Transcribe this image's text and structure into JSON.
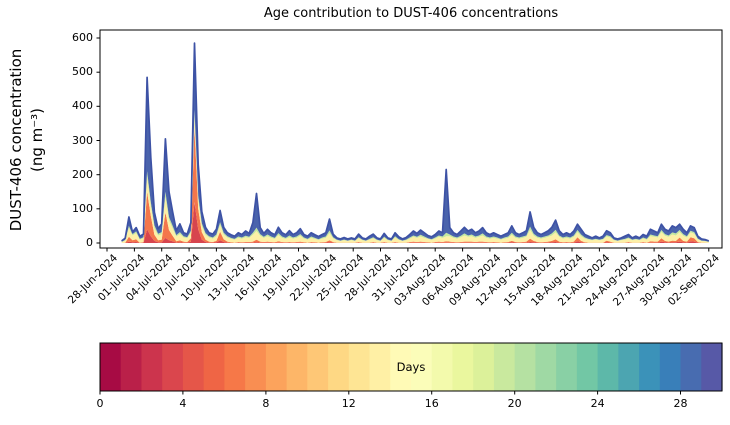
{
  "title": "Age contribution to DUST-406 concentrations",
  "y_axis": {
    "label_line1": "DUST-406 concentration",
    "label_line2": "(ng m⁻³)",
    "ticks": [
      0,
      100,
      200,
      300,
      400,
      500,
      600
    ],
    "limits": [
      -15,
      623
    ]
  },
  "x_axis": {
    "tick_labels": [
      "28-Jun-2024",
      "01-Jul-2024",
      "04-Jul-2024",
      "07-Jul-2024",
      "10-Jul-2024",
      "13-Jul-2024",
      "16-Jul-2024",
      "19-Jul-2024",
      "22-Jul-2024",
      "25-Jul-2024",
      "28-Jul-2024",
      "31-Jul-2024",
      "03-Aug-2024",
      "06-Aug-2024",
      "09-Aug-2024",
      "12-Aug-2024",
      "15-Aug-2024",
      "18-Aug-2024",
      "21-Aug-2024",
      "24-Aug-2024",
      "27-Aug-2024",
      "30-Aug-2024",
      "02-Sep-2024"
    ],
    "tick_day_step": 3
  },
  "colorbar": {
    "label": "Days",
    "ticks": [
      0,
      4,
      8,
      12,
      16,
      20,
      24,
      28
    ],
    "range": [
      0,
      30
    ],
    "n_segments": 30,
    "spectral_anchors": [
      "#9e0142",
      "#d53e4f",
      "#f46d43",
      "#fdae61",
      "#fee08b",
      "#ffffbf",
      "#e6f598",
      "#abdda4",
      "#66c2a5",
      "#3288bd",
      "#5e4fa2"
    ]
  },
  "colors": {
    "spine": "#000000",
    "text": "#000000",
    "background": "#ffffff",
    "envelope_stroke": "#3d52a5"
  },
  "chart_data": {
    "type": "area",
    "stacked": true,
    "title": "Age contribution to DUST-406 concentrations",
    "ylabel": "DUST-406 concentration (ng m⁻³)",
    "ylim": [
      -15,
      623
    ],
    "x_day0_date": "28-Jun-2024",
    "x_start_day": 1.6,
    "x_step_day": 0.4,
    "bands": [
      {
        "age_days": "0-7",
        "color": "#d7454e"
      },
      {
        "age_days": "7-12",
        "color": "#f4764b"
      },
      {
        "age_days": "12-17",
        "color": "#fdf0a6"
      },
      {
        "age_days": "17-22",
        "color": "#c3e79e"
      },
      {
        "age_days": "22-30",
        "color": "#4a63ac"
      }
    ],
    "points": [
      [
        0,
        0,
        3,
        1,
        2
      ],
      [
        0,
        1,
        6,
        2,
        5
      ],
      [
        4,
        14,
        26,
        6,
        26
      ],
      [
        2,
        6,
        14,
        4,
        6
      ],
      [
        3,
        8,
        18,
        5,
        11
      ],
      [
        0,
        1,
        9,
        2,
        8
      ],
      [
        1,
        2,
        11,
        3,
        9
      ],
      [
        40,
        110,
        45,
        15,
        275
      ],
      [
        20,
        60,
        30,
        10,
        130
      ],
      [
        6,
        18,
        20,
        8,
        38
      ],
      [
        2,
        6,
        14,
        5,
        15
      ],
      [
        2,
        8,
        16,
        6,
        24
      ],
      [
        15,
        75,
        45,
        15,
        155
      ],
      [
        8,
        30,
        28,
        10,
        74
      ],
      [
        5,
        16,
        22,
        8,
        41
      ],
      [
        1,
        4,
        14,
        4,
        13
      ],
      [
        2,
        6,
        18,
        6,
        24
      ],
      [
        1,
        3,
        12,
        4,
        10
      ],
      [
        1,
        2,
        11,
        3,
        9
      ],
      [
        4,
        10,
        16,
        6,
        24
      ],
      [
        120,
        220,
        35,
        15,
        195
      ],
      [
        40,
        60,
        28,
        10,
        92
      ],
      [
        10,
        22,
        18,
        8,
        34
      ],
      [
        3,
        7,
        14,
        5,
        17
      ],
      [
        1,
        3,
        12,
        4,
        10
      ],
      [
        1,
        2,
        10,
        3,
        10
      ],
      [
        2,
        4,
        14,
        5,
        15
      ],
      [
        8,
        25,
        20,
        8,
        34
      ],
      [
        3,
        8,
        14,
        5,
        16
      ],
      [
        1,
        3,
        12,
        4,
        10
      ],
      [
        0,
        2,
        10,
        3,
        9
      ],
      [
        0,
        1,
        9,
        2,
        8
      ],
      [
        1,
        2,
        12,
        4,
        11
      ],
      [
        0,
        2,
        11,
        3,
        9
      ],
      [
        1,
        2,
        14,
        4,
        14
      ],
      [
        1,
        2,
        12,
        3,
        10
      ],
      [
        1,
        3,
        20,
        6,
        30
      ],
      [
        2,
        8,
        25,
        10,
        100
      ],
      [
        1,
        3,
        17,
        5,
        19
      ],
      [
        1,
        2,
        12,
        3,
        10
      ],
      [
        1,
        3,
        16,
        5,
        15
      ],
      [
        1,
        2,
        12,
        4,
        11
      ],
      [
        0,
        2,
        10,
        3,
        9
      ],
      [
        1,
        4,
        18,
        6,
        17
      ],
      [
        1,
        2,
        12,
        4,
        11
      ],
      [
        0,
        2,
        10,
        3,
        9
      ],
      [
        1,
        2,
        14,
        5,
        14
      ],
      [
        0,
        2,
        11,
        3,
        9
      ],
      [
        1,
        2,
        12,
        4,
        11
      ],
      [
        1,
        3,
        17,
        5,
        16
      ],
      [
        0,
        2,
        11,
        3,
        9
      ],
      [
        0,
        1,
        9,
        2,
        8
      ],
      [
        1,
        2,
        12,
        4,
        11
      ],
      [
        0,
        2,
        10,
        3,
        9
      ],
      [
        0,
        1,
        8,
        2,
        8
      ],
      [
        0,
        2,
        11,
        3,
        9
      ],
      [
        1,
        2,
        12,
        4,
        11
      ],
      [
        2,
        6,
        21,
        8,
        33
      ],
      [
        1,
        2,
        11,
        3,
        9
      ],
      [
        0,
        1,
        7,
        2,
        5
      ],
      [
        0,
        1,
        5,
        1,
        5
      ],
      [
        0,
        1,
        7,
        2,
        6
      ],
      [
        0,
        1,
        5,
        1,
        5
      ],
      [
        0,
        1,
        7,
        2,
        5
      ],
      [
        0,
        1,
        5,
        1,
        5
      ],
      [
        1,
        2,
        11,
        3,
        9
      ],
      [
        0,
        1,
        7,
        2,
        5
      ],
      [
        0,
        1,
        5,
        1,
        5
      ],
      [
        0,
        1,
        9,
        2,
        8
      ],
      [
        1,
        2,
        11,
        3,
        9
      ],
      [
        0,
        1,
        7,
        2,
        5
      ],
      [
        0,
        1,
        5,
        1,
        5
      ],
      [
        1,
        2,
        12,
        3,
        10
      ],
      [
        0,
        1,
        7,
        2,
        5
      ],
      [
        0,
        1,
        5,
        1,
        5
      ],
      [
        1,
        2,
        13,
        4,
        10
      ],
      [
        0,
        1,
        8,
        2,
        7
      ],
      [
        0,
        1,
        5,
        1,
        5
      ],
      [
        0,
        1,
        7,
        2,
        6
      ],
      [
        1,
        2,
        10,
        3,
        9
      ],
      [
        1,
        3,
        14,
        4,
        13
      ],
      [
        1,
        2,
        12,
        3,
        10
      ],
      [
        1,
        3,
        15,
        5,
        14
      ],
      [
        1,
        2,
        12,
        4,
        11
      ],
      [
        0,
        2,
        10,
        2,
        8
      ],
      [
        0,
        1,
        8,
        2,
        7
      ],
      [
        1,
        2,
        10,
        3,
        9
      ],
      [
        1,
        3,
        14,
        4,
        13
      ],
      [
        1,
        2,
        12,
        4,
        11
      ],
      [
        1,
        4,
        15,
        10,
        185
      ],
      [
        1,
        3,
        16,
        5,
        20
      ],
      [
        1,
        2,
        12,
        4,
        11
      ],
      [
        0,
        2,
        11,
        3,
        9
      ],
      [
        1,
        2,
        14,
        4,
        14
      ],
      [
        1,
        3,
        18,
        6,
        18
      ],
      [
        1,
        3,
        14,
        4,
        13
      ],
      [
        1,
        3,
        16,
        5,
        15
      ],
      [
        1,
        2,
        12,
        4,
        11
      ],
      [
        1,
        3,
        14,
        4,
        13
      ],
      [
        1,
        3,
        18,
        6,
        17
      ],
      [
        1,
        2,
        12,
        4,
        11
      ],
      [
        0,
        2,
        11,
        3,
        9
      ],
      [
        1,
        2,
        12,
        4,
        11
      ],
      [
        0,
        2,
        11,
        3,
        9
      ],
      [
        0,
        1,
        9,
        2,
        8
      ],
      [
        0,
        2,
        11,
        3,
        9
      ],
      [
        1,
        2,
        12,
        4,
        11
      ],
      [
        2,
        4,
        18,
        6,
        20
      ],
      [
        1,
        2,
        12,
        4,
        11
      ],
      [
        0,
        2,
        11,
        3,
        9
      ],
      [
        1,
        2,
        12,
        4,
        11
      ],
      [
        1,
        3,
        14,
        4,
        14
      ],
      [
        3,
        10,
        25,
        10,
        43
      ],
      [
        2,
        4,
        16,
        5,
        19
      ],
      [
        1,
        2,
        12,
        4,
        11
      ],
      [
        0,
        2,
        11,
        3,
        9
      ],
      [
        1,
        2,
        12,
        4,
        11
      ],
      [
        1,
        3,
        14,
        4,
        14
      ],
      [
        2,
        4,
        16,
        6,
        18
      ],
      [
        3,
        8,
        20,
        8,
        28
      ],
      [
        1,
        3,
        14,
        4,
        14
      ],
      [
        0,
        2,
        11,
        3,
        9
      ],
      [
        1,
        2,
        12,
        4,
        11
      ],
      [
        0,
        2,
        11,
        3,
        9
      ],
      [
        1,
        3,
        14,
        4,
        13
      ],
      [
        5,
        12,
        15,
        6,
        17
      ],
      [
        2,
        4,
        14,
        5,
        15
      ],
      [
        0,
        2,
        11,
        3,
        9
      ],
      [
        0,
        1,
        9,
        2,
        8
      ],
      [
        0,
        1,
        7,
        2,
        5
      ],
      [
        0,
        1,
        9,
        2,
        8
      ],
      [
        0,
        1,
        7,
        2,
        5
      ],
      [
        0,
        1,
        9,
        2,
        8
      ],
      [
        2,
        5,
        12,
        4,
        13
      ],
      [
        1,
        3,
        12,
        4,
        10
      ],
      [
        0,
        1,
        7,
        2,
        5
      ],
      [
        0,
        1,
        5,
        1,
        5
      ],
      [
        0,
        1,
        7,
        2,
        5
      ],
      [
        0,
        1,
        9,
        2,
        8
      ],
      [
        1,
        2,
        10,
        3,
        9
      ],
      [
        0,
        1,
        7,
        2,
        5
      ],
      [
        0,
        1,
        9,
        2,
        8
      ],
      [
        0,
        1,
        7,
        2,
        5
      ],
      [
        1,
        2,
        10,
        3,
        9
      ],
      [
        0,
        1,
        9,
        2,
        8
      ],
      [
        1,
        4,
        15,
        5,
        15
      ],
      [
        1,
        3,
        14,
        4,
        13
      ],
      [
        1,
        3,
        12,
        4,
        10
      ],
      [
        4,
        10,
        18,
        6,
        17
      ],
      [
        2,
        4,
        15,
        5,
        14
      ],
      [
        1,
        3,
        14,
        4,
        13
      ],
      [
        2,
        5,
        18,
        6,
        19
      ],
      [
        2,
        4,
        16,
        6,
        17
      ],
      [
        4,
        12,
        16,
        6,
        17
      ],
      [
        2,
        4,
        15,
        5,
        14
      ],
      [
        1,
        3,
        12,
        4,
        10
      ],
      [
        5,
        12,
        14,
        5,
        14
      ],
      [
        4,
        10,
        13,
        5,
        13
      ],
      [
        1,
        2,
        8,
        2,
        7
      ],
      [
        0,
        1,
        5,
        1,
        5
      ],
      [
        0,
        1,
        4,
        1,
        4
      ],
      [
        0,
        0,
        3,
        1,
        2
      ]
    ]
  }
}
